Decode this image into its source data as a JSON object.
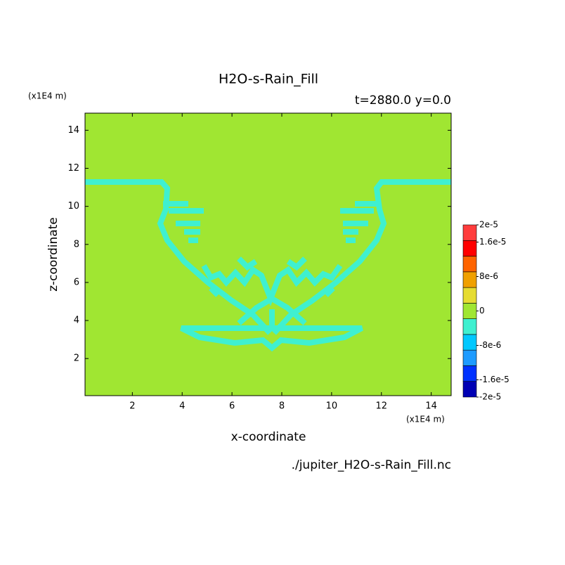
{
  "chart_data": {
    "type": "contourf",
    "title": "H2O-s-Rain_Fill",
    "subtitle": "t=2880.0 y=0.0",
    "x_label": "x-coordinate",
    "y_label": "z-coordinate",
    "x_unit": "(x1E4 m)",
    "y_unit": "(x1E4 m)",
    "footer": "./jupiter_H2O-s-Rain_Fill.nc",
    "xlim": [
      0.1,
      14.8
    ],
    "ylim": [
      0.05,
      14.9
    ],
    "xticks": [
      2,
      4,
      6,
      8,
      10,
      12,
      14
    ],
    "yticks": [
      2,
      4,
      6,
      8,
      10,
      12,
      14
    ],
    "colorbar": {
      "clim": [
        {
          "value": -2e-05,
          "label": "-2e-5"
        },
        {
          "value": 2e-05,
          "label": "2e-5"
        }
      ],
      "ticks": [
        {
          "value": -2e-05,
          "label": "-2e-5"
        },
        {
          "value": -1.6e-05,
          "label": "-1.6e-5"
        },
        {
          "value": -8e-06,
          "label": "-8e-6"
        },
        0,
        {
          "value": 8e-06,
          "label": "8e-6"
        },
        {
          "value": 1.6e-05,
          "label": "1.6e-5"
        },
        {
          "value": 2e-05,
          "label": "2e-5"
        }
      ],
      "colors": [
        "#0000b4",
        "#0032ff",
        "#1e9bff",
        "#00c8ff",
        "#3ff0d0",
        "#a0e632",
        "#e6dc32",
        "#f0a000",
        "#ff6400",
        "#ff0000",
        "#ff3c3c"
      ]
    }
  }
}
